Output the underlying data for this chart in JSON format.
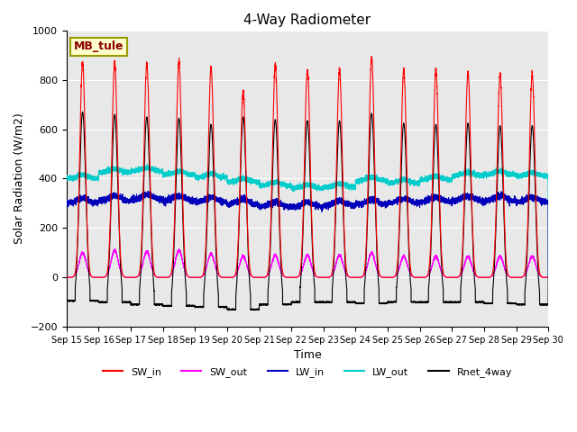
{
  "title": "4-Way Radiometer",
  "xlabel": "Time",
  "ylabel": "Solar Radiation (W/m2)",
  "ylim": [
    -200,
    1000
  ],
  "xlim": [
    0,
    15
  ],
  "annotation": "MB_tule",
  "x_tick_labels": [
    "Sep 15",
    "Sep 16",
    "Sep 17",
    "Sep 18",
    "Sep 19",
    "Sep 20",
    "Sep 21",
    "Sep 22",
    "Sep 23",
    "Sep 24",
    "Sep 25",
    "Sep 26",
    "Sep 27",
    "Sep 28",
    "Sep 29",
    "Sep 30"
  ],
  "legend_labels": [
    "SW_in",
    "SW_out",
    "LW_in",
    "LW_out",
    "Rnet_4way"
  ],
  "legend_colors": [
    "#ff0000",
    "#ff00ff",
    "#0000bb",
    "#00cccc",
    "#000000"
  ],
  "bg_color": "#e8e8e8",
  "SW_in_peak": [
    870,
    870,
    865,
    875,
    850,
    750,
    860,
    840,
    840,
    890,
    840,
    840,
    830,
    825,
    825
  ],
  "SW_out_peak": [
    100,
    110,
    105,
    110,
    95,
    85,
    90,
    90,
    90,
    100,
    85,
    85,
    85,
    85,
    85
  ],
  "LW_in_base": [
    300,
    310,
    315,
    310,
    305,
    295,
    285,
    285,
    290,
    295,
    300,
    305,
    310,
    310,
    305
  ],
  "LW_out_base": [
    400,
    425,
    430,
    415,
    405,
    385,
    370,
    360,
    365,
    390,
    380,
    395,
    410,
    415,
    410
  ],
  "Rnet_peak": [
    670,
    660,
    650,
    645,
    620,
    650,
    640,
    635,
    635,
    665,
    625,
    620,
    625,
    615,
    615
  ],
  "Rnet_night": [
    -95,
    -100,
    -110,
    -115,
    -120,
    -130,
    -110,
    -100,
    -100,
    -105,
    -100,
    -100,
    -100,
    -105,
    -110
  ],
  "day_start": 0.28,
  "day_end": 0.72,
  "peak_time": 0.5
}
